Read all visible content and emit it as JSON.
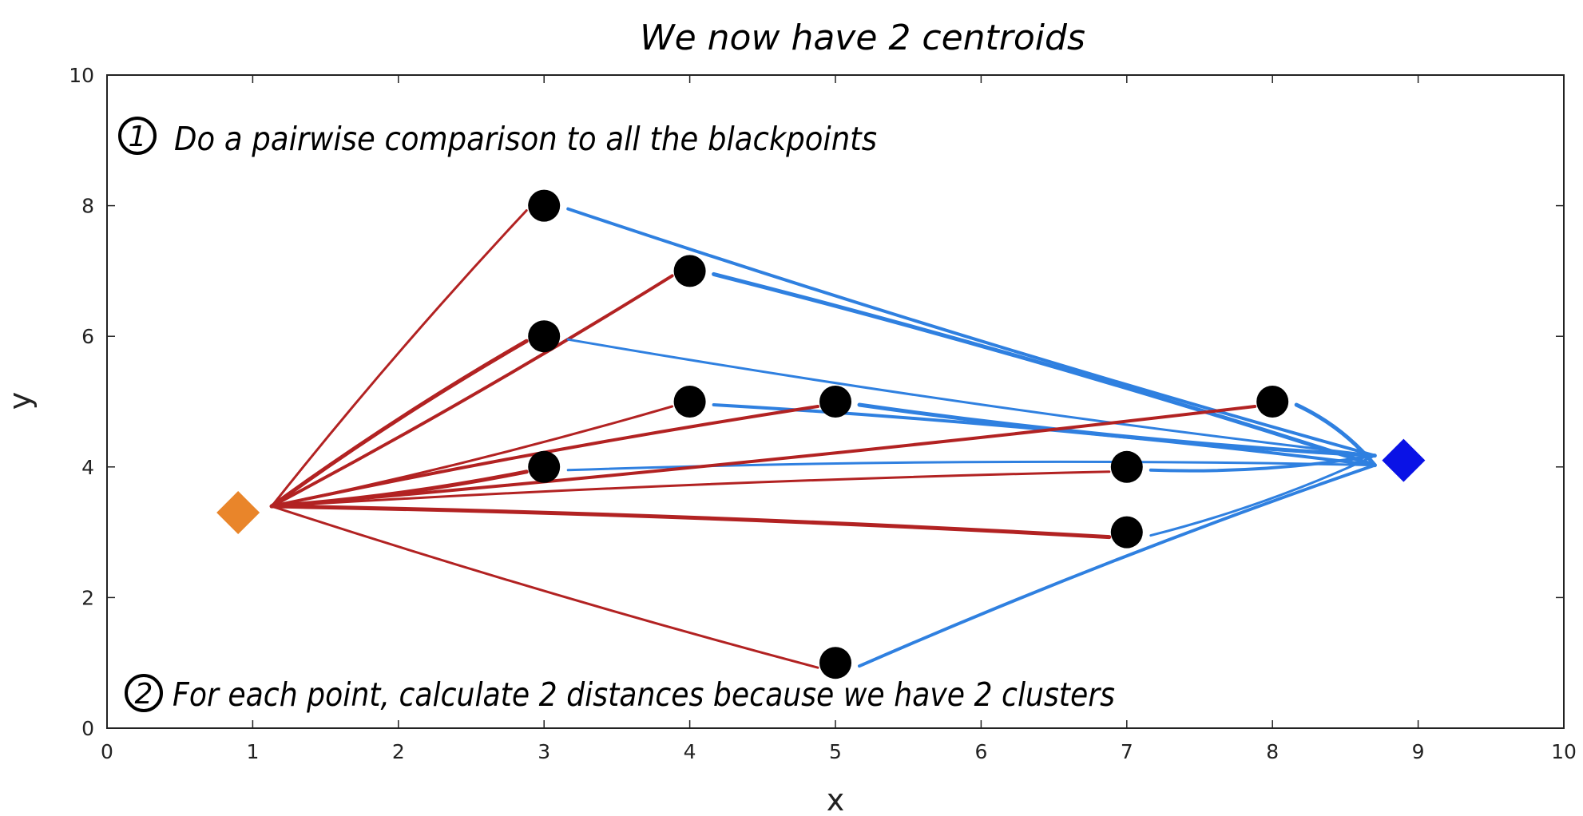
{
  "chart_data": {
    "type": "scatter",
    "title": "We now have 2 centroids",
    "xlabel": "x",
    "ylabel": "y",
    "xlim": [
      0,
      10
    ],
    "ylim": [
      0,
      10
    ],
    "xticks": [
      0,
      1,
      2,
      3,
      4,
      5,
      6,
      7,
      8,
      9,
      10
    ],
    "yticks": [
      0,
      2,
      4,
      6,
      8,
      10
    ],
    "grid": false,
    "series": [
      {
        "marker": "circle",
        "color": "#000000",
        "points": [
          [
            3,
            8
          ],
          [
            4,
            7
          ],
          [
            3,
            6
          ],
          [
            4,
            5
          ],
          [
            5,
            5
          ],
          [
            3,
            4
          ],
          [
            7,
            4
          ],
          [
            8,
            5
          ],
          [
            7,
            3
          ],
          [
            5,
            1
          ]
        ]
      }
    ],
    "centroids": [
      {
        "x": 0.9,
        "y": 3.3,
        "marker": "diamond",
        "color": "#e9852a"
      },
      {
        "x": 8.9,
        "y": 4.1,
        "marker": "diamond",
        "color": "#0a12e6"
      }
    ],
    "lines_color_centroid_1": "#b22222",
    "lines_color_centroid_2": "#2f80e0",
    "annotations": [
      {
        "number": "1",
        "text": "Do a pairwise comparison to all the blackpoints"
      },
      {
        "number": "2",
        "text": "For each point, calculate 2 distances because we have 2 clusters"
      }
    ]
  }
}
